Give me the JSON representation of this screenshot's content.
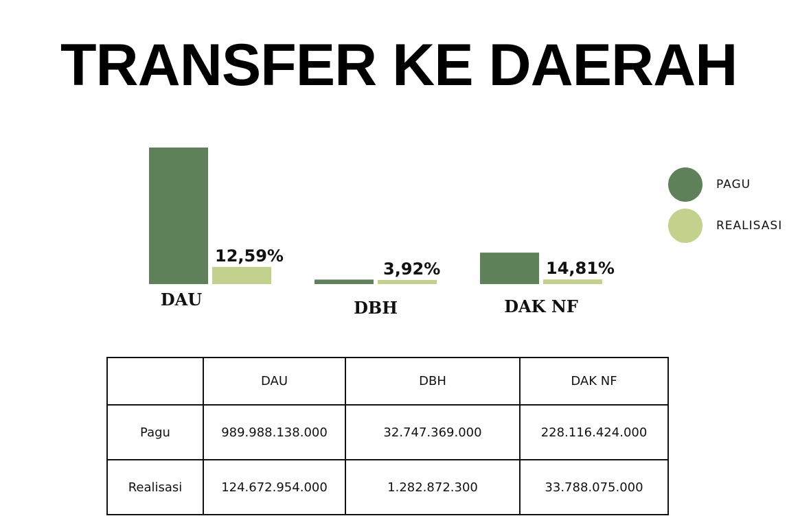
{
  "title": "TRANSFER KE DAERAH",
  "legend": [
    {
      "label": "PAGU",
      "color": "#5e8159"
    },
    {
      "label": "REALISASI",
      "color": "#c2d28c"
    }
  ],
  "chart_data": {
    "type": "bar",
    "categories": [
      "DAU",
      "DBH",
      "DAK NF"
    ],
    "series": [
      {
        "name": "PAGU",
        "color": "#5e8159",
        "values": [
          989988138000,
          32747369000,
          228116424000
        ]
      },
      {
        "name": "REALISASI",
        "color": "#c2d28c",
        "values": [
          124672954000,
          1282872300,
          33788075000
        ]
      }
    ],
    "annotations": [
      "12,59%",
      "3,92%",
      "14,81%"
    ],
    "legend_position": "right"
  },
  "table": {
    "header": [
      "",
      "DAU",
      "DBH",
      "DAK NF"
    ],
    "rows": [
      [
        "Pagu",
        "989.988.138.000",
        "32.747.369.000",
        "228.116.424.000"
      ],
      [
        "Realisasi",
        "124.672.954.000",
        "1.282.872.300",
        "33.788.075.000"
      ]
    ]
  }
}
